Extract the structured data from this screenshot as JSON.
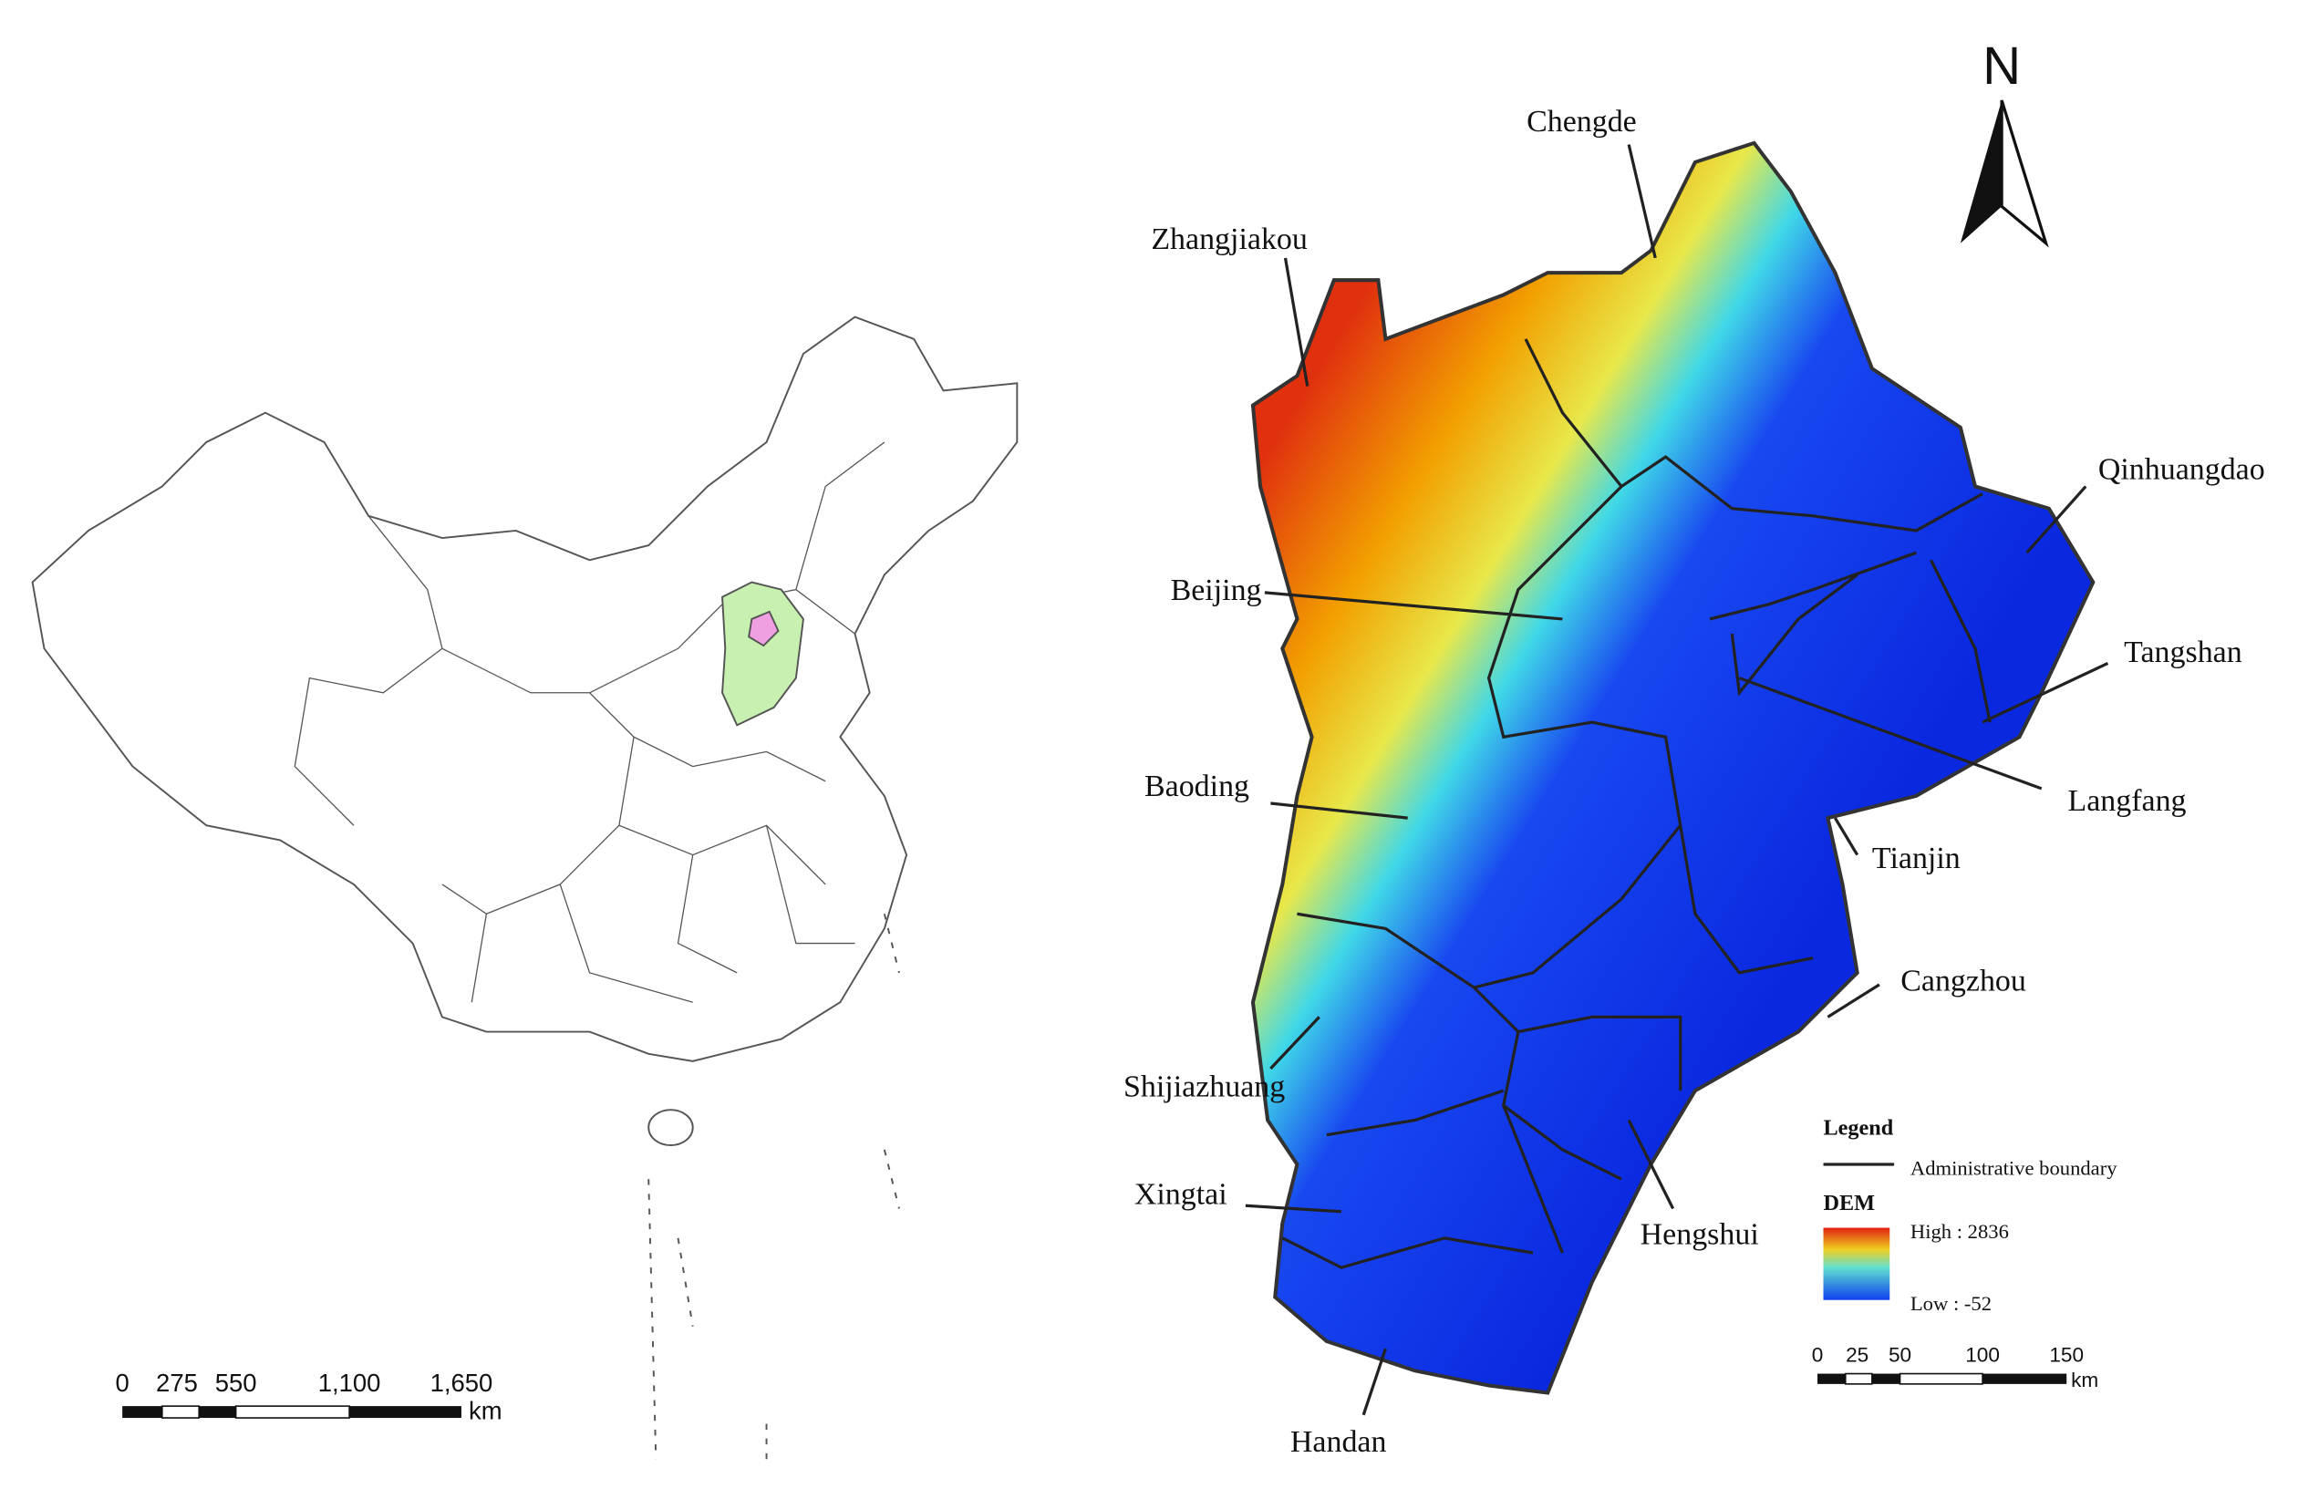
{
  "north_label": "N",
  "left_map": {
    "scale_labels": [
      "0",
      "275",
      "550",
      "1,100",
      "1,650"
    ],
    "scale_unit": "km"
  },
  "right_map": {
    "cities": [
      "Chengde",
      "Zhangjiakou",
      "Qinhuangdao",
      "Beijing",
      "Tangshan",
      "Langfang",
      "Baoding",
      "Tianjin",
      "Cangzhou",
      "Shijiazhuang",
      "Hengshui",
      "Xingtai",
      "Handan"
    ],
    "legend": {
      "title": "Legend",
      "boundary": "Administrative boundary",
      "dem_title": "DEM",
      "high": "High : 2836",
      "low": "Low : -52"
    },
    "scale_labels": [
      "0",
      "25",
      "50",
      "100",
      "150"
    ],
    "scale_unit": "km"
  }
}
